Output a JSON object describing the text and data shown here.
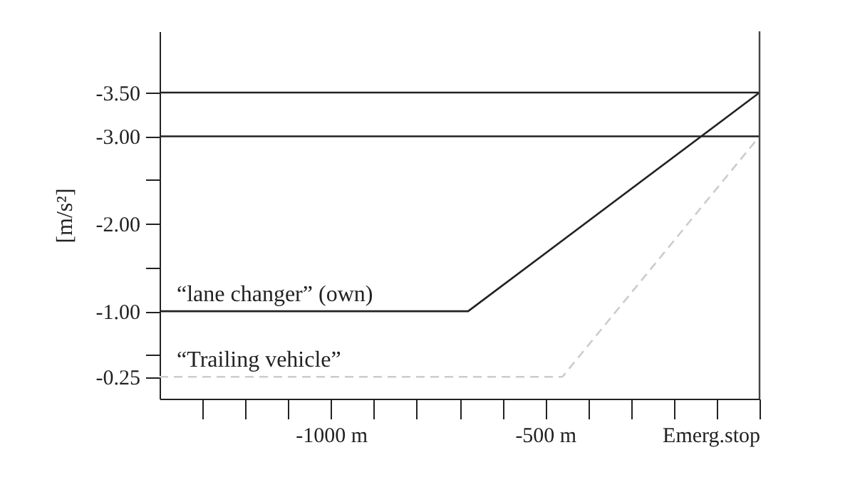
{
  "chart_data": {
    "type": "line",
    "ylabel": "[m/s²]",
    "series": [
      {
        "name": "“lane changer” (own)",
        "color": "#222222",
        "line_style": "solid",
        "x": [
          -1400,
          -680,
          0
        ],
        "values": [
          -1,
          -1,
          -3.5
        ]
      },
      {
        "name": "“Trailing vehicle”",
        "color": "#cccccc",
        "line_style": "dashed",
        "x": [
          -1400,
          -460,
          0
        ],
        "values": [
          -0.25,
          -0.25,
          -3.0
        ]
      }
    ],
    "xlim": [
      -1400,
      0
    ],
    "xticks": [
      {
        "value": -1300,
        "label": null
      },
      {
        "value": -1200,
        "label": null
      },
      {
        "value": -1100,
        "label": null
      },
      {
        "value": -1000,
        "label": "-1000 m"
      },
      {
        "value": -900,
        "label": null
      },
      {
        "value": -800,
        "label": null
      },
      {
        "value": -700,
        "label": null
      },
      {
        "value": -600,
        "label": null
      },
      {
        "value": -500,
        "label": "-500 m"
      },
      {
        "value": -400,
        "label": null
      },
      {
        "value": -300,
        "label": null
      },
      {
        "value": -200,
        "label": null
      },
      {
        "value": -100,
        "label": null
      },
      {
        "value": 0,
        "label": "Emerg.stop"
      }
    ],
    "ylim": [
      0,
      -4.2
    ],
    "yticks": [
      -0.25,
      {
        "value": -0.5,
        "label": null
      },
      {
        "value": -1,
        "label": "-1.00"
      },
      {
        "value": -1.5,
        "label": null
      },
      {
        "value": -2,
        "label": "-2.00"
      },
      {
        "value": -2.5,
        "label": null
      },
      {
        "value": -3,
        "label": "-3.00"
      },
      {
        "value": -3.5,
        "label": "-3.50"
      }
    ],
    "ref_lines": [
      {
        "axis": "y",
        "value": -3.5,
        "label": null,
        "color": "#222222"
      },
      {
        "axis": "y",
        "value": -3.0,
        "label": null,
        "color": "#222222"
      },
      {
        "axis": "x",
        "value": 0,
        "label": null,
        "color": "#444444"
      }
    ],
    "grid": false,
    "legend": false,
    "marker": "none"
  }
}
